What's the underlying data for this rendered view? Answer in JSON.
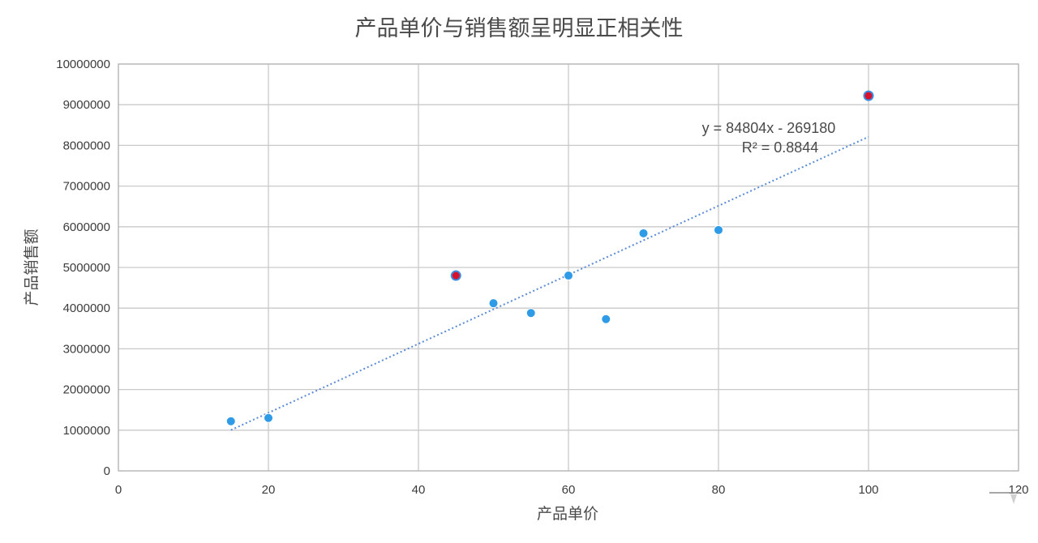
{
  "chart_data": {
    "type": "scatter",
    "title": "产品单价与销售额呈明显正相关性",
    "xlabel": "产品单价",
    "ylabel": "产品销售额",
    "xlim": [
      0,
      120
    ],
    "ylim": [
      0,
      10000000
    ],
    "x_ticks": [
      0,
      20,
      40,
      60,
      80,
      100,
      120
    ],
    "y_ticks": [
      0,
      1000000,
      2000000,
      3000000,
      4000000,
      5000000,
      6000000,
      7000000,
      8000000,
      9000000,
      10000000
    ],
    "x_tick_labels": [
      "0",
      "20",
      "40",
      "60",
      "80",
      "100",
      "120"
    ],
    "y_tick_labels": [
      "0",
      "1000000",
      "2000000",
      "3000000",
      "4000000",
      "5000000",
      "6000000",
      "7000000",
      "8000000",
      "9000000",
      "10000000"
    ],
    "grid": true,
    "points": [
      {
        "x": 15,
        "y": 1220000,
        "highlight": false
      },
      {
        "x": 20,
        "y": 1300000,
        "highlight": false
      },
      {
        "x": 45,
        "y": 4800000,
        "highlight": true
      },
      {
        "x": 50,
        "y": 4120000,
        "highlight": false
      },
      {
        "x": 55,
        "y": 3880000,
        "highlight": false
      },
      {
        "x": 60,
        "y": 4800000,
        "highlight": false
      },
      {
        "x": 65,
        "y": 3730000,
        "highlight": false
      },
      {
        "x": 70,
        "y": 5840000,
        "highlight": false
      },
      {
        "x": 80,
        "y": 5920000,
        "highlight": false
      },
      {
        "x": 100,
        "y": 9220000,
        "highlight": true
      }
    ],
    "trendline": {
      "type": "linear",
      "slope": 84804,
      "intercept": -269180,
      "x_range": [
        15,
        100
      ],
      "equation_label": "y = 84804x - 269180",
      "r2_label": "R² = 0.8844"
    },
    "colors": {
      "point": "#2f9be6",
      "point_highlight": "#d8112c",
      "point_highlight_stroke": "#3a8de0",
      "trendline": "#5b8bd6",
      "grid": "#c9c9c9",
      "plot_border": "#b5b5b5"
    }
  }
}
